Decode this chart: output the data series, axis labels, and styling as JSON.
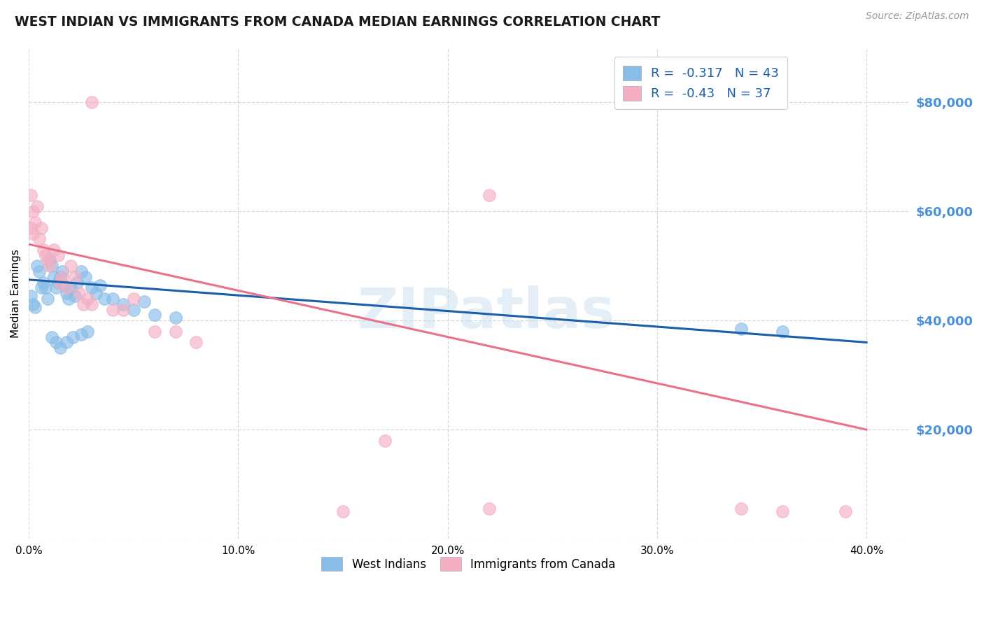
{
  "title": "WEST INDIAN VS IMMIGRANTS FROM CANADA MEDIAN EARNINGS CORRELATION CHART",
  "source_text": "Source: ZipAtlas.com",
  "ylabel": "Median Earnings",
  "xlim": [
    0.0,
    0.42
  ],
  "ylim": [
    0,
    90000
  ],
  "yticks": [
    0,
    20000,
    40000,
    60000,
    80000
  ],
  "ytick_labels": [
    "",
    "$20,000",
    "$40,000",
    "$60,000",
    "$80,000"
  ],
  "xticks": [
    0.0,
    0.1,
    0.2,
    0.3,
    0.4
  ],
  "xtick_labels": [
    "0.0%",
    "10.0%",
    "20.0%",
    "30.0%",
    "40.0%"
  ],
  "west_indian_color": "#89bde8",
  "canada_color": "#f4afc3",
  "trend_blue": "#1a5fa8",
  "trend_pink": "#e8728a",
  "west_indian_R": -0.317,
  "west_indian_N": 43,
  "canada_R": -0.43,
  "canada_N": 37,
  "watermark": "ZIPatlas",
  "background_color": "#ffffff",
  "grid_color": "#d8d8d8",
  "right_tick_color": "#4a90d9",
  "west_indian_scatter": [
    [
      0.001,
      44500
    ],
    [
      0.002,
      43000
    ],
    [
      0.003,
      42500
    ],
    [
      0.004,
      50000
    ],
    [
      0.005,
      49000
    ],
    [
      0.006,
      46000
    ],
    [
      0.007,
      47000
    ],
    [
      0.008,
      46000
    ],
    [
      0.009,
      44000
    ],
    [
      0.01,
      51000
    ],
    [
      0.011,
      50000
    ],
    [
      0.012,
      48000
    ],
    [
      0.013,
      46000
    ],
    [
      0.014,
      47000
    ],
    [
      0.015,
      48000
    ],
    [
      0.016,
      49000
    ],
    [
      0.017,
      46500
    ],
    [
      0.018,
      45000
    ],
    [
      0.019,
      44000
    ],
    [
      0.02,
      46000
    ],
    [
      0.022,
      44500
    ],
    [
      0.023,
      47000
    ],
    [
      0.025,
      49000
    ],
    [
      0.027,
      48000
    ],
    [
      0.03,
      46000
    ],
    [
      0.032,
      45000
    ],
    [
      0.034,
      46500
    ],
    [
      0.036,
      44000
    ],
    [
      0.04,
      44000
    ],
    [
      0.045,
      43000
    ],
    [
      0.05,
      42000
    ],
    [
      0.055,
      43500
    ],
    [
      0.06,
      41000
    ],
    [
      0.07,
      40500
    ],
    [
      0.011,
      37000
    ],
    [
      0.013,
      36000
    ],
    [
      0.015,
      35000
    ],
    [
      0.018,
      36000
    ],
    [
      0.021,
      37000
    ],
    [
      0.025,
      37500
    ],
    [
      0.028,
      38000
    ],
    [
      0.34,
      38500
    ],
    [
      0.36,
      38000
    ]
  ],
  "canada_scatter": [
    [
      0.03,
      80000
    ],
    [
      0.001,
      63000
    ],
    [
      0.002,
      60000
    ],
    [
      0.003,
      58000
    ],
    [
      0.004,
      61000
    ],
    [
      0.005,
      55000
    ],
    [
      0.006,
      57000
    ],
    [
      0.007,
      53000
    ],
    [
      0.008,
      52000
    ],
    [
      0.009,
      51000
    ],
    [
      0.01,
      50000
    ],
    [
      0.012,
      53000
    ],
    [
      0.014,
      52000
    ],
    [
      0.001,
      57000
    ],
    [
      0.002,
      56000
    ],
    [
      0.015,
      47000
    ],
    [
      0.016,
      48000
    ],
    [
      0.018,
      46000
    ],
    [
      0.02,
      50000
    ],
    [
      0.022,
      48000
    ],
    [
      0.024,
      45000
    ],
    [
      0.026,
      43000
    ],
    [
      0.028,
      44000
    ],
    [
      0.03,
      43000
    ],
    [
      0.04,
      42000
    ],
    [
      0.045,
      42000
    ],
    [
      0.05,
      44000
    ],
    [
      0.06,
      38000
    ],
    [
      0.07,
      38000
    ],
    [
      0.08,
      36000
    ],
    [
      0.22,
      63000
    ],
    [
      0.17,
      18000
    ],
    [
      0.22,
      5500
    ],
    [
      0.15,
      5000
    ],
    [
      0.36,
      5000
    ],
    [
      0.34,
      5500
    ],
    [
      0.39,
      5000
    ]
  ],
  "blue_trend_x": [
    0.0,
    0.4
  ],
  "blue_trend_y": [
    47500,
    36000
  ],
  "pink_trend_x": [
    0.0,
    0.4
  ],
  "pink_trend_y": [
    54000,
    20000
  ]
}
